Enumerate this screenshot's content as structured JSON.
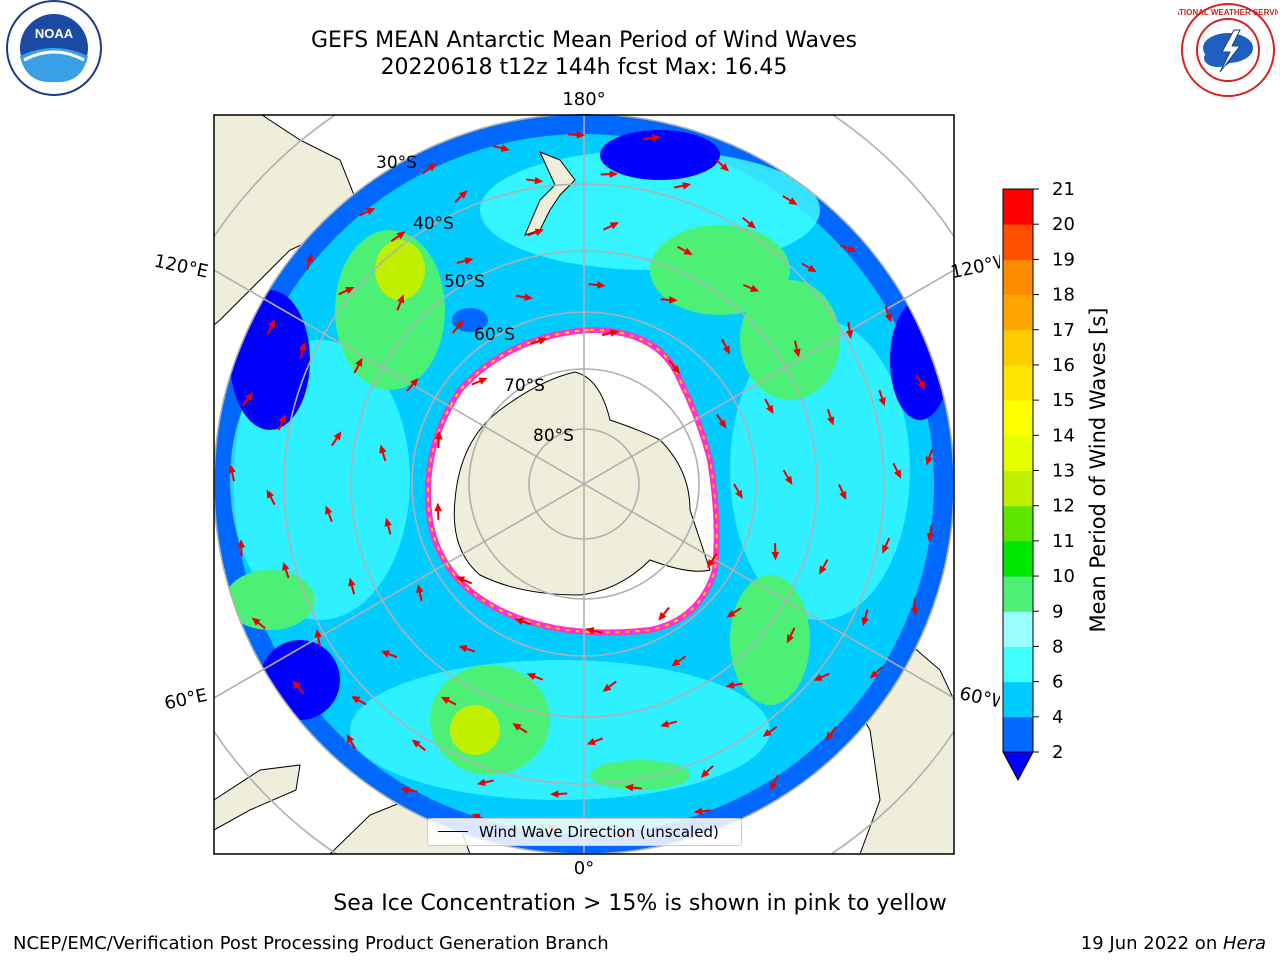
{
  "title": {
    "line1": "GEFS MEAN Antarctic Mean Period of Wind Waves",
    "line2": "20220618 t12z 144h fcst   Max: 16.45"
  },
  "map": {
    "projection": "south-polar-stereographic",
    "lon_labels": {
      "top": "180°",
      "bottom": "0°",
      "upper_left": "120°E",
      "upper_right": "120°W",
      "lower_left": "60°E",
      "lower_right": "60°W"
    },
    "lat_labels": [
      "30°S",
      "40°S",
      "50°S",
      "60°S",
      "70°S",
      "80°S"
    ],
    "legend_label": "Wind Wave Direction (unscaled)",
    "colors": {
      "land": "#efeedb",
      "sea_ice": "#ffffff",
      "ice_edge": "#ff33cc",
      "arrows": "#ee0000",
      "grid": "#b0b0b0"
    }
  },
  "colorbar": {
    "label": "Mean Period of Wind Waves [s]",
    "ticks": [
      "2",
      "4",
      "6",
      "8",
      "9",
      "10",
      "11",
      "12",
      "13",
      "14",
      "15",
      "16",
      "17",
      "18",
      "19",
      "20",
      "21"
    ],
    "colors": [
      "#0068ff",
      "#00ccff",
      "#41ffff",
      "#99ffff",
      "#4cf076",
      "#00e600",
      "#5ee600",
      "#c0f000",
      "#e6ff00",
      "#ffff00",
      "#ffe600",
      "#ffcc00",
      "#ffa500",
      "#ff8c00",
      "#ff5000",
      "#ff0000"
    ],
    "under_color": "#0000ff"
  },
  "caption": "Sea Ice Concentration > 15% is shown in pink to yellow",
  "footer": {
    "left": "NCEP/EMC/Verification Post Processing Product Generation Branch",
    "right_prefix": "19 Jun 2022 on ",
    "right_host": "Hera"
  },
  "logos": {
    "noaa_text": "NOAA",
    "nws_text": "NATIONAL WEATHER SERVICE"
  }
}
